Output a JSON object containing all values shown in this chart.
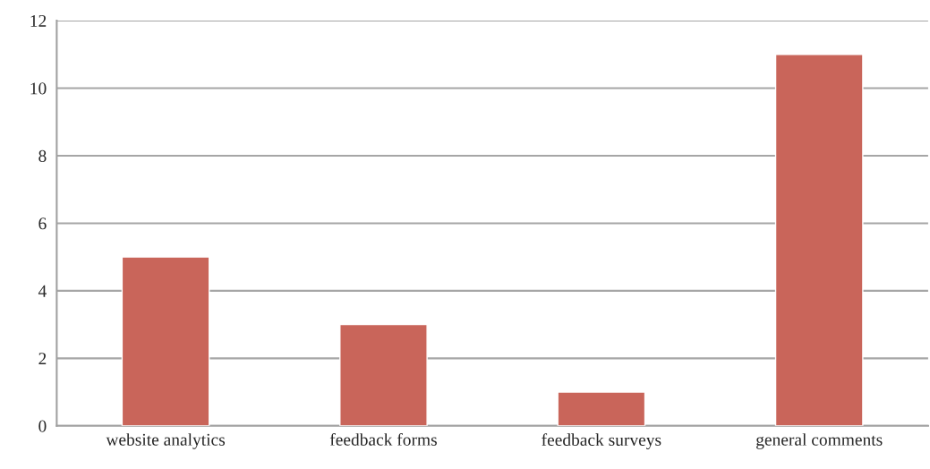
{
  "chart_data": {
    "type": "bar",
    "categories": [
      "website analytics",
      "feedback forms",
      "feedback surveys",
      "general comments"
    ],
    "values": [
      5,
      3,
      1,
      11
    ],
    "color": "#c9655a",
    "ylim": [
      0,
      12
    ],
    "yticks": [
      0,
      2,
      4,
      6,
      8,
      10,
      12
    ],
    "grid": "y",
    "legend": false
  }
}
